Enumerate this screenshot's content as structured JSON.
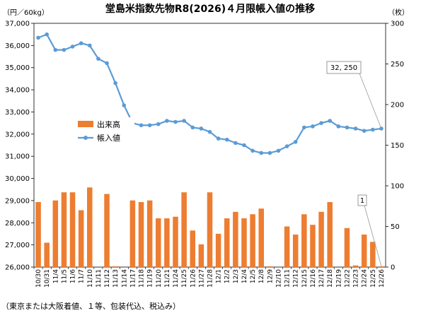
{
  "chart_data": {
    "type": "bar+line",
    "title": "堂島米指数先物R8(2026)４月限帳入値の推移",
    "left_unit": "（円／60kg）",
    "right_unit": "（枚）",
    "note": "（東京または大阪着値、１等、包装代込、税込み）",
    "left_axis": {
      "min": 26000,
      "max": 37000,
      "step": 1000,
      "ticks": [
        "26,000",
        "27,000",
        "28,000",
        "29,000",
        "30,000",
        "31,000",
        "32,000",
        "33,000",
        "34,000",
        "35,000",
        "36,000",
        "37,000"
      ]
    },
    "right_axis": {
      "min": 0,
      "max": 300,
      "step": 50,
      "ticks": [
        "0",
        "50",
        "100",
        "150",
        "200",
        "250",
        "300"
      ]
    },
    "categories": [
      "10/30",
      "10/31",
      "11/4",
      "11/5",
      "11/6",
      "11/7",
      "11/10",
      "11/11",
      "11/12",
      "11/13",
      "11/14",
      "11/17",
      "11/18",
      "11/19",
      "11/20",
      "11/21",
      "11/24",
      "11/25",
      "11/26",
      "11/27",
      "11/28",
      "12/1",
      "12/2",
      "12/3",
      "12/4",
      "12/5",
      "12/8",
      "12/9",
      "12/10",
      "12/11",
      "12/12",
      "12/15",
      "12/16",
      "12/17",
      "12/18",
      "12/19",
      "12/22",
      "12/23",
      "12/24",
      "12/25",
      "12/26"
    ],
    "xtick_labels": [
      "10/30",
      "10/31",
      "11/4",
      "11/5",
      "11/6",
      "11/7",
      "11/10",
      "11/11",
      "11/12",
      "11/13",
      "11/14",
      "11/17",
      "11/18",
      "11/19",
      "11/20",
      "11/21",
      "11/24",
      "11/25",
      "11/26",
      "11/27",
      "11/28",
      "12/1",
      "12/2",
      "12/3",
      "12/4",
      "12/5",
      "12/8",
      "12/9",
      "12/10",
      "12/11",
      "12/12",
      "12/15",
      "12/16",
      "12/17",
      "12/18",
      "12/19",
      "12/22",
      "12/23",
      "12/24",
      "12/25",
      "12/26"
    ],
    "series": [
      {
        "name": "出来高",
        "axis": "right",
        "kind": "bar",
        "color": "#ED7D31",
        "values": [
          80,
          30,
          82,
          92,
          92,
          70,
          98,
          0,
          90,
          1,
          0,
          82,
          80,
          82,
          60,
          60,
          62,
          92,
          45,
          28,
          92,
          41,
          60,
          68,
          60,
          65,
          72,
          1,
          0,
          50,
          40,
          65,
          52,
          68,
          80,
          0,
          48,
          2,
          40,
          31,
          1
        ]
      },
      {
        "name": "帳入値",
        "axis": "left",
        "kind": "line",
        "color": "#5B9BD5",
        "values": [
          36350,
          36500,
          35800,
          35800,
          35950,
          36100,
          36000,
          35400,
          35200,
          34300,
          33300,
          32500,
          32400,
          32400,
          32450,
          32600,
          32550,
          32600,
          32300,
          32250,
          32100,
          31800,
          31750,
          31600,
          31500,
          31250,
          31150,
          31150,
          31250,
          31450,
          31650,
          32300,
          32350,
          32500,
          32600,
          32350,
          32300,
          32250,
          32150,
          32200,
          32250
        ]
      }
    ],
    "legend": {
      "placement": "inside-left",
      "items": [
        "出来高",
        "帳入値"
      ]
    },
    "annotations": [
      {
        "label": "32, 250",
        "target": "帳入値",
        "index": 40
      },
      {
        "label": "1",
        "target": "出来高",
        "index": 40
      }
    ],
    "grid": false
  }
}
